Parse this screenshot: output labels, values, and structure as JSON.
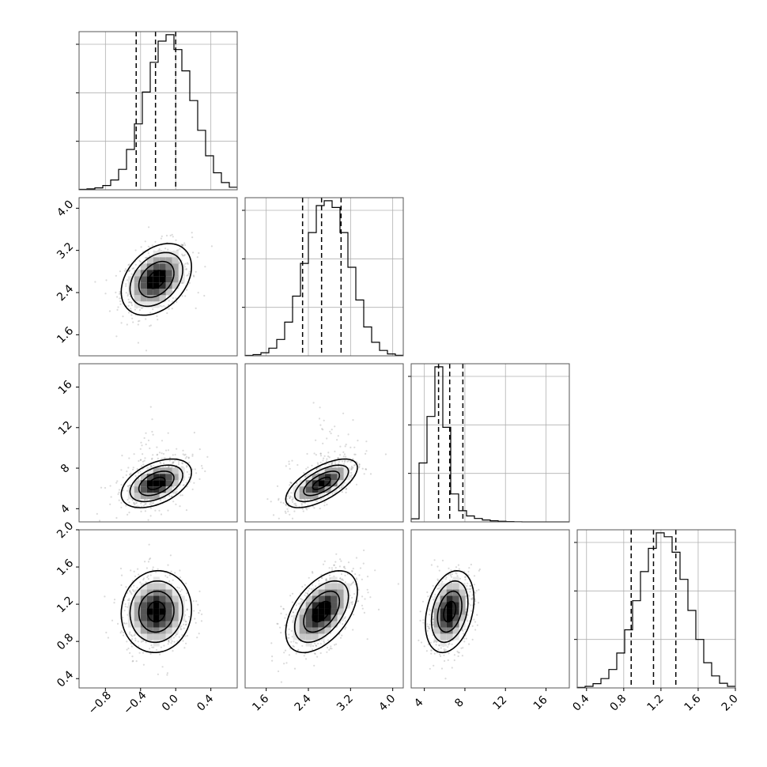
{
  "chart_data": {
    "type": "corner",
    "parameters": [
      {
        "id": "p0",
        "range": [
          -1.1,
          0.7
        ],
        "mean": -0.22,
        "sd": 0.2,
        "quantiles": [
          -0.45,
          -0.23,
          0.0
        ],
        "ticks": [
          -0.8,
          -0.4,
          0.0,
          0.4
        ],
        "tick_labels": [
          "−0.8",
          "−0.4",
          "0.0",
          "0.4"
        ]
      },
      {
        "id": "p1",
        "range": [
          1.2,
          4.2
        ],
        "mean": 2.65,
        "sd": 0.34,
        "quantiles": [
          2.29,
          2.65,
          3.02
        ],
        "ticks": [
          1.6,
          2.4,
          3.2,
          4.0
        ],
        "tick_labels": [
          "1.6",
          "2.4",
          "3.2",
          "4.0"
        ]
      },
      {
        "id": "p2",
        "range": [
          2.7,
          18.3
        ],
        "mean": 6.5,
        "sd": 1.2,
        "quantiles": [
          5.4,
          6.5,
          7.8
        ],
        "ticks": [
          4,
          8,
          12,
          16
        ],
        "tick_labels": [
          "4",
          "8",
          "12",
          "16"
        ]
      },
      {
        "id": "p3",
        "range": [
          0.3,
          2.0
        ],
        "mean": 1.12,
        "sd": 0.22,
        "quantiles": [
          0.88,
          1.12,
          1.36
        ],
        "ticks": [
          0.4,
          0.8,
          1.2,
          1.6,
          2.0
        ],
        "tick_labels": [
          "0.4",
          "0.8",
          "1.2",
          "1.6",
          "2.0"
        ]
      }
    ],
    "histograms": {
      "p0": {
        "edges_start": -1.1,
        "bin_width": 0.09,
        "heights": [
          2,
          4,
          9,
          20,
          46,
          96,
          190,
          310,
          460,
          600,
          700,
          730,
          660,
          560,
          420,
          280,
          160,
          80,
          34,
          12
        ]
      },
      "p1": {
        "edges_start": 1.2,
        "bin_width": 0.15,
        "heights": [
          2,
          6,
          16,
          40,
          85,
          175,
          310,
          480,
          640,
          780,
          805,
          770,
          640,
          460,
          290,
          150,
          70,
          28,
          10,
          3
        ]
      },
      "p2": {
        "edges_start": 2.7,
        "bin_width": 0.78,
        "heights": [
          20,
          380,
          680,
          1000,
          610,
          180,
          72,
          38,
          22,
          12,
          7,
          4,
          2,
          1,
          0,
          0,
          0,
          0,
          0,
          0
        ]
      },
      "p3": {
        "edges_start": 0.3,
        "bin_width": 0.085,
        "heights": [
          3,
          8,
          22,
          48,
          95,
          180,
          300,
          450,
          600,
          720,
          800,
          780,
          700,
          560,
          400,
          250,
          130,
          62,
          24,
          8
        ]
      }
    },
    "correlations": [
      [
        0,
        1,
        0.35
      ],
      [
        0,
        2,
        0.45
      ],
      [
        1,
        2,
        0.65
      ],
      [
        0,
        3,
        0.05
      ],
      [
        1,
        3,
        0.5
      ],
      [
        2,
        3,
        0.3
      ]
    ],
    "contour_levels_sigma": [
      0.5,
      1.0,
      1.5,
      2.0
    ],
    "density_cell_colors": [
      "#e6e6e6",
      "#c8c8c8",
      "#a4a4a4",
      "#7e7e7e",
      "#555555",
      "#2a2a2a",
      "#000000"
    ],
    "scatter_points_per_panel": 650,
    "grid": true
  }
}
